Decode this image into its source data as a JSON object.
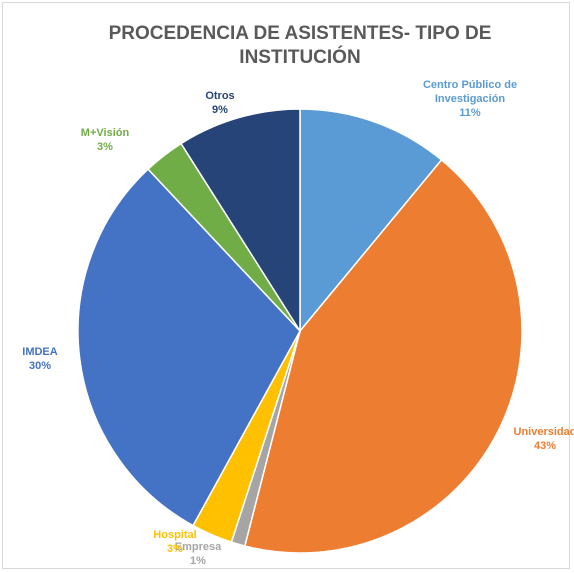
{
  "chart_data": {
    "type": "pie",
    "title": "PROCEDENCIA DE ASISTENTES- TIPO DE INSTITUCIÓN",
    "categories": [
      "Centro Público de Investigación",
      "Universidad",
      "Empresa",
      "Hospital",
      "IMDEA",
      "M+Visión",
      "Otros"
    ],
    "values": [
      11,
      43,
      1,
      3,
      30,
      3,
      9
    ],
    "value_labels": [
      "11%",
      "43%",
      "1%",
      "3%",
      "30%",
      "3%",
      "9%"
    ],
    "colors": [
      "#5b9bd5",
      "#ed7d31",
      "#a5a5a5",
      "#ffc000",
      "#4472c4",
      "#70ad47",
      "#264478"
    ]
  }
}
